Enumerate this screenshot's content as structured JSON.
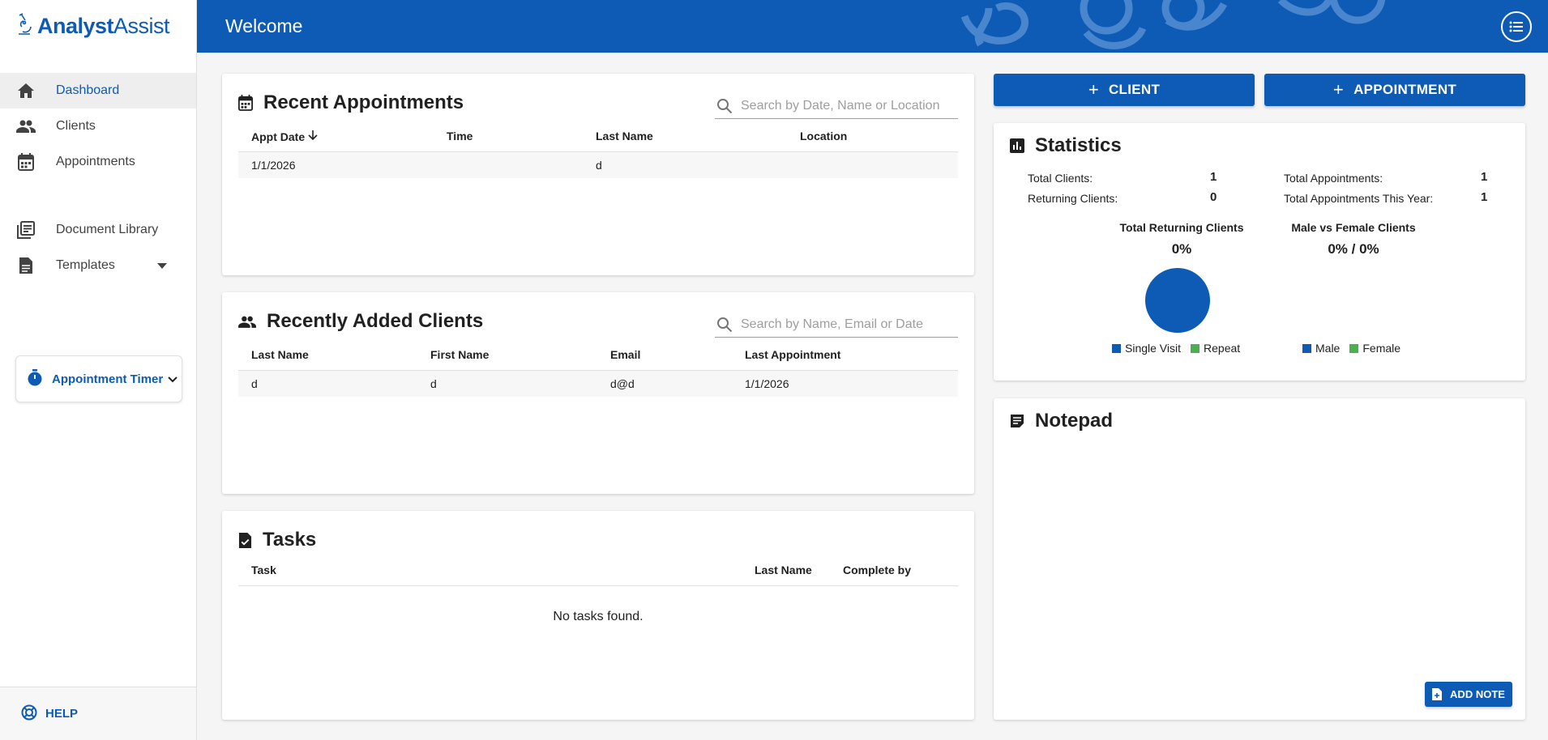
{
  "app": {
    "logo_part1": "Analyst",
    "logo_part2": "Assist"
  },
  "sidebar": {
    "items": [
      {
        "label": "Dashboard",
        "icon": "home-icon",
        "active": true
      },
      {
        "label": "Clients",
        "icon": "people-icon"
      },
      {
        "label": "Appointments",
        "icon": "calendar-icon"
      },
      {
        "label": "Document Library",
        "icon": "library-icon"
      },
      {
        "label": "Templates",
        "icon": "document-icon"
      }
    ],
    "timer_label": "Appointment Timer",
    "help_label": "HELP"
  },
  "header": {
    "title": "Welcome"
  },
  "recent_appointments": {
    "title": "Recent Appointments",
    "search_placeholder": "Search by Date, Name or Location",
    "columns": [
      "Appt Date",
      "Time",
      "Last Name",
      "Location"
    ],
    "rows": [
      [
        "1/1/2026",
        "",
        "d",
        ""
      ]
    ]
  },
  "recent_clients": {
    "title": "Recently Added Clients",
    "search_placeholder": "Search by Name, Email or Date",
    "columns": [
      "Last Name",
      "First Name",
      "Email",
      "Last Appointment"
    ],
    "rows": [
      [
        "d",
        "d",
        "d@d",
        "1/1/2026"
      ]
    ]
  },
  "tasks": {
    "title": "Tasks",
    "columns": [
      "Task",
      "Last Name",
      "Complete by"
    ],
    "empty_text": "No tasks found."
  },
  "actions": {
    "client_label": "CLIENT",
    "appointment_label": "APPOINTMENT"
  },
  "statistics": {
    "title": "Statistics",
    "total_clients_label": "Total Clients:",
    "total_clients": "1",
    "returning_clients_label": "Returning Clients:",
    "returning_clients": "0",
    "total_appointments_label": "Total Appointments:",
    "total_appointments": "1",
    "appointments_year_label": "Total Appointments This Year:",
    "appointments_year": "1",
    "returning_chart_title": "Total Returning Clients",
    "returning_chart_pct": "0%",
    "gender_chart_title": "Male vs Female Clients",
    "gender_chart_pct": "0% / 0%",
    "legend_single": "Single Visit",
    "legend_repeat": "Repeat",
    "legend_male": "Male",
    "legend_female": "Female",
    "colors": {
      "primary": "#0d5bb5",
      "secondary": "#4caf50"
    }
  },
  "notepad": {
    "title": "Notepad",
    "add_note_label": "ADD NOTE"
  }
}
